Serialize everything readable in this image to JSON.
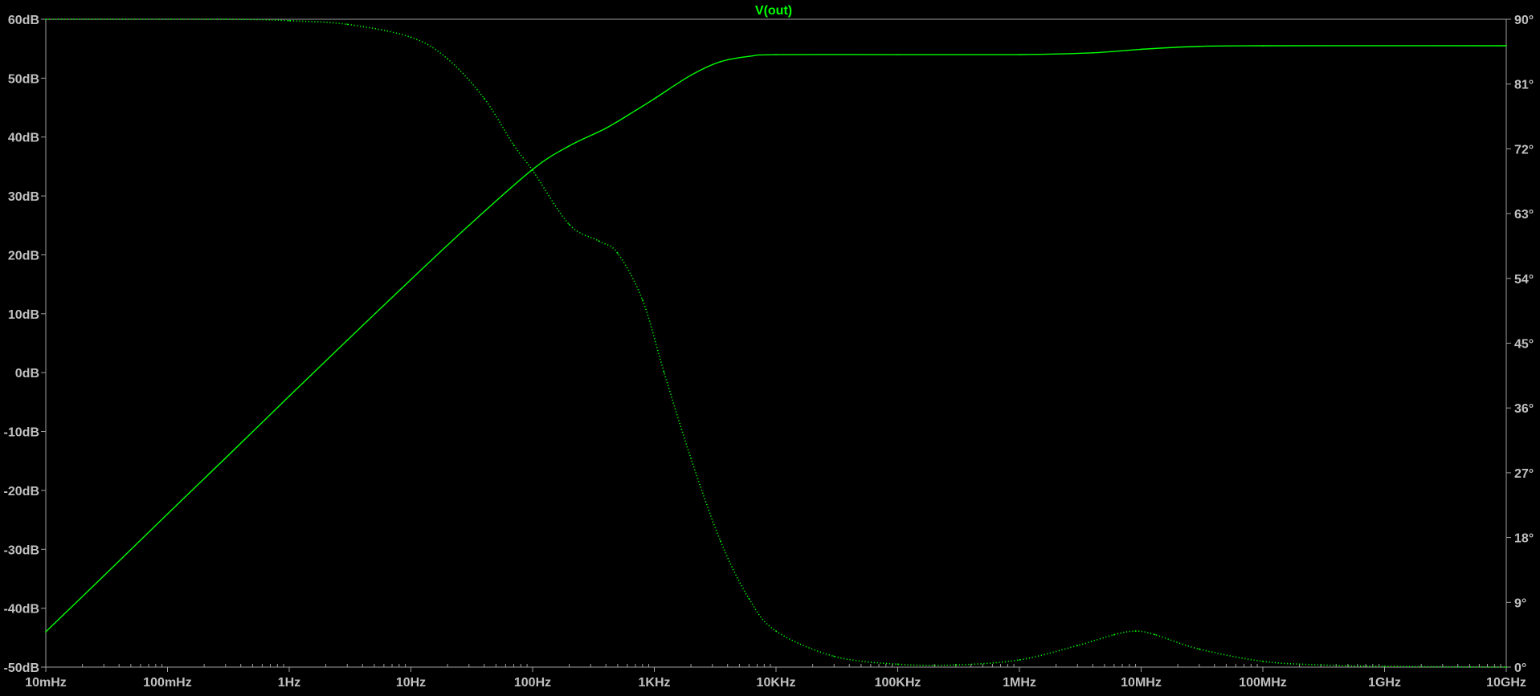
{
  "chart_data": {
    "type": "line",
    "title": "V(out)",
    "x_scale": "log",
    "xlim": [
      0.01,
      10000000000
    ],
    "xticks": [
      {
        "value": 0.01,
        "label": "10mHz"
      },
      {
        "value": 0.1,
        "label": "100mHz"
      },
      {
        "value": 1,
        "label": "1Hz"
      },
      {
        "value": 10,
        "label": "10Hz"
      },
      {
        "value": 100,
        "label": "100Hz"
      },
      {
        "value": 1000,
        "label": "1KHz"
      },
      {
        "value": 10000,
        "label": "10KHz"
      },
      {
        "value": 100000,
        "label": "100KHz"
      },
      {
        "value": 1000000,
        "label": "1MHz"
      },
      {
        "value": 10000000,
        "label": "10MHz"
      },
      {
        "value": 100000000,
        "label": "100MHz"
      },
      {
        "value": 1000000000,
        "label": "1GHz"
      },
      {
        "value": 10000000000,
        "label": "10GHz"
      }
    ],
    "y_left": {
      "unit": "dB",
      "lim": [
        -50,
        60
      ],
      "ticks": [
        {
          "value": 60,
          "label": "60dB"
        },
        {
          "value": 50,
          "label": "50dB"
        },
        {
          "value": 40,
          "label": "40dB"
        },
        {
          "value": 30,
          "label": "30dB"
        },
        {
          "value": 20,
          "label": "20dB"
        },
        {
          "value": 10,
          "label": "10dB"
        },
        {
          "value": 0,
          "label": "0dB"
        },
        {
          "value": -10,
          "label": "-10dB"
        },
        {
          "value": -20,
          "label": "-20dB"
        },
        {
          "value": -30,
          "label": "-30dB"
        },
        {
          "value": -40,
          "label": "-40dB"
        },
        {
          "value": -50,
          "label": "-50dB"
        }
      ]
    },
    "y_right": {
      "unit": "°",
      "lim": [
        0,
        90
      ],
      "ticks": [
        {
          "value": 90,
          "label": "90°"
        },
        {
          "value": 81,
          "label": "81°"
        },
        {
          "value": 72,
          "label": "72°"
        },
        {
          "value": 63,
          "label": "63°"
        },
        {
          "value": 54,
          "label": "54°"
        },
        {
          "value": 45,
          "label": "45°"
        },
        {
          "value": 36,
          "label": "36°"
        },
        {
          "value": 27,
          "label": "27°"
        },
        {
          "value": 18,
          "label": "18°"
        },
        {
          "value": 9,
          "label": "9°"
        },
        {
          "value": 0,
          "label": "0°"
        }
      ]
    },
    "grid": false,
    "series": [
      {
        "axis": "left",
        "style": "solid",
        "color": "#00ff00",
        "points": [
          {
            "x": 0.01,
            "y": -44
          },
          {
            "x": 0.03,
            "y": -34.5
          },
          {
            "x": 0.1,
            "y": -24
          },
          {
            "x": 0.3,
            "y": -14.5
          },
          {
            "x": 1,
            "y": -4
          },
          {
            "x": 3,
            "y": 5.5
          },
          {
            "x": 10,
            "y": 15.8
          },
          {
            "x": 30,
            "y": 25
          },
          {
            "x": 100,
            "y": 34.5
          },
          {
            "x": 200,
            "y": 38.5
          },
          {
            "x": 400,
            "y": 41.5
          },
          {
            "x": 700,
            "y": 44.5
          },
          {
            "x": 1000,
            "y": 46.5
          },
          {
            "x": 2000,
            "y": 50.5
          },
          {
            "x": 3500,
            "y": 52.8
          },
          {
            "x": 6000,
            "y": 53.7
          },
          {
            "x": 10000,
            "y": 54
          },
          {
            "x": 100000,
            "y": 54
          },
          {
            "x": 1000000,
            "y": 54
          },
          {
            "x": 4000000,
            "y": 54.3
          },
          {
            "x": 10000000,
            "y": 54.9
          },
          {
            "x": 30000000,
            "y": 55.4
          },
          {
            "x": 100000000,
            "y": 55.5
          },
          {
            "x": 10000000000,
            "y": 55.5
          }
        ]
      },
      {
        "axis": "right",
        "style": "dotted",
        "color": "#00ff00",
        "points": [
          {
            "x": 0.01,
            "y": 90
          },
          {
            "x": 0.3,
            "y": 90
          },
          {
            "x": 1,
            "y": 89.8
          },
          {
            "x": 3,
            "y": 89.3
          },
          {
            "x": 10,
            "y": 87.5
          },
          {
            "x": 20,
            "y": 84.5
          },
          {
            "x": 40,
            "y": 79
          },
          {
            "x": 70,
            "y": 72.5
          },
          {
            "x": 100,
            "y": 69
          },
          {
            "x": 200,
            "y": 61.5
          },
          {
            "x": 350,
            "y": 59.2
          },
          {
            "x": 500,
            "y": 57.5
          },
          {
            "x": 800,
            "y": 51
          },
          {
            "x": 1200,
            "y": 41
          },
          {
            "x": 2000,
            "y": 29
          },
          {
            "x": 3500,
            "y": 17.5
          },
          {
            "x": 6000,
            "y": 9.5
          },
          {
            "x": 10000,
            "y": 5
          },
          {
            "x": 30000,
            "y": 1.5
          },
          {
            "x": 100000,
            "y": 0.4
          },
          {
            "x": 300000,
            "y": 0.3
          },
          {
            "x": 1000000,
            "y": 1
          },
          {
            "x": 3000000,
            "y": 3
          },
          {
            "x": 6000000,
            "y": 4.5
          },
          {
            "x": 9000000,
            "y": 5
          },
          {
            "x": 13000000,
            "y": 4.5
          },
          {
            "x": 30000000,
            "y": 2.5
          },
          {
            "x": 100000000,
            "y": 0.8
          },
          {
            "x": 300000000,
            "y": 0.3
          },
          {
            "x": 1000000000,
            "y": 0.1
          },
          {
            "x": 10000000000,
            "y": 0
          }
        ]
      }
    ]
  }
}
